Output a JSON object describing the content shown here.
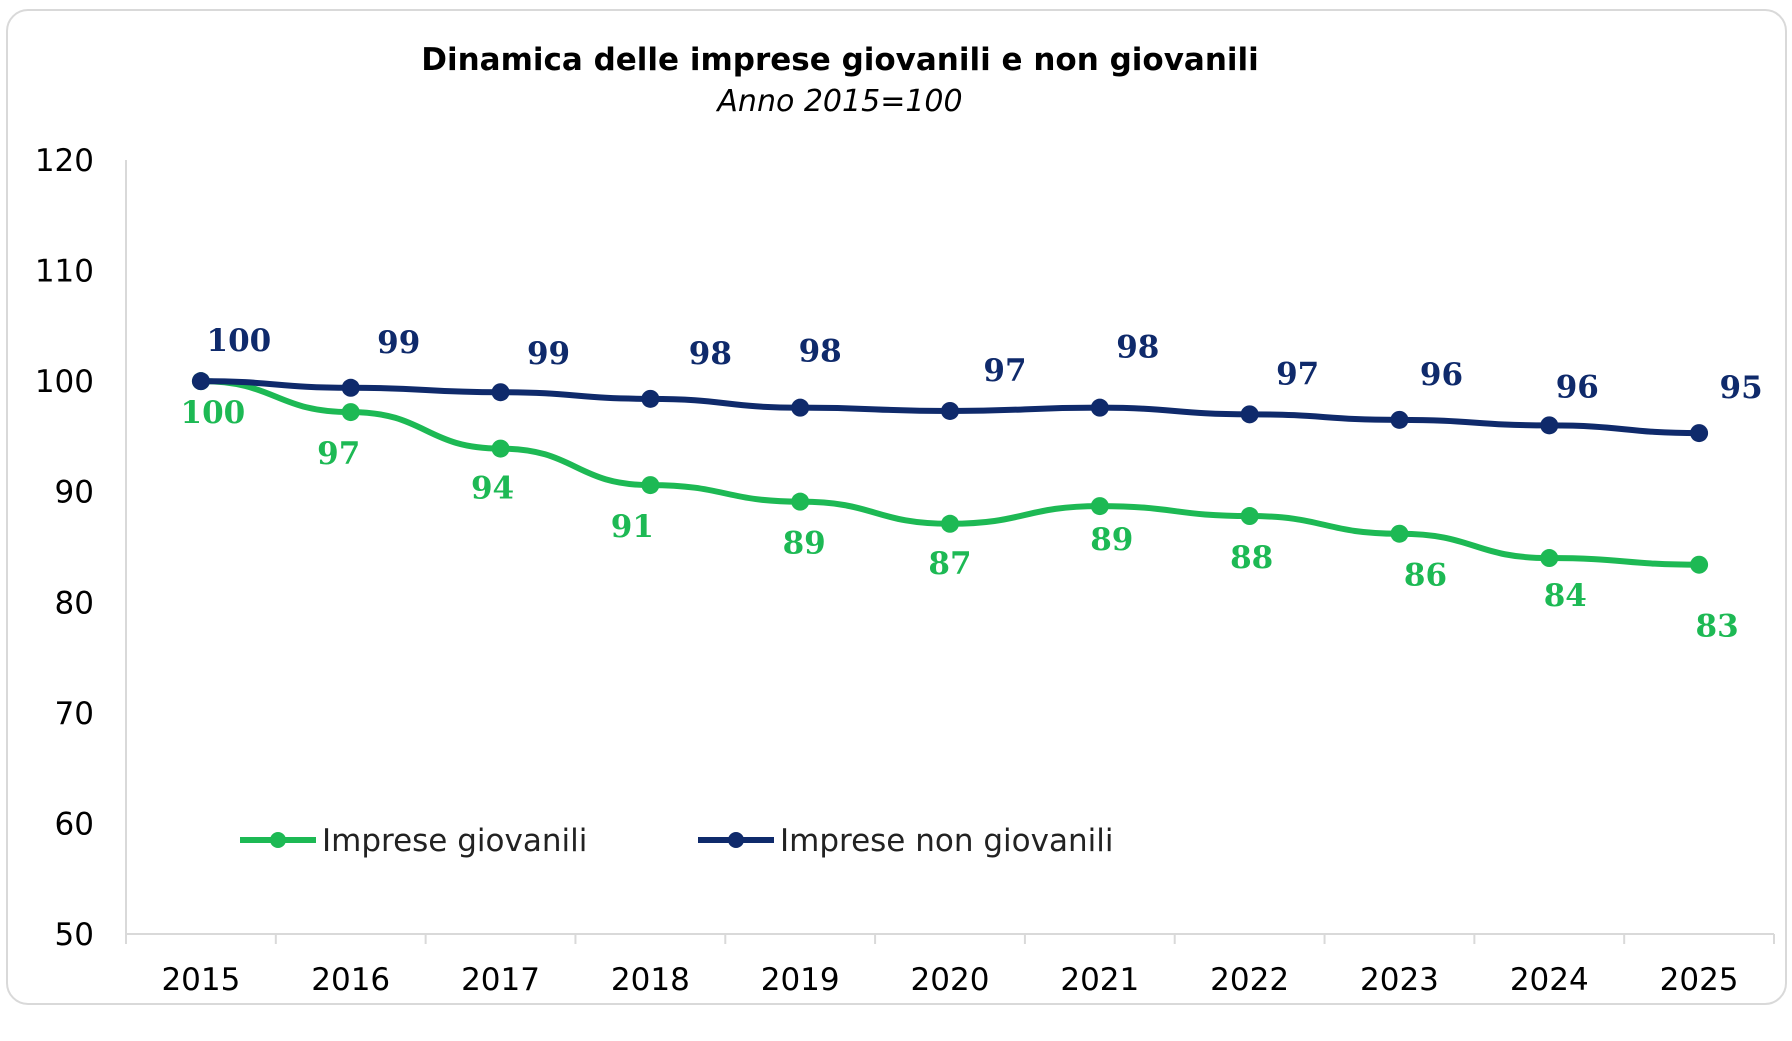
{
  "chart_data": {
    "type": "line",
    "title": "Dinamica delle imprese giovanili e non giovanili",
    "subtitle": "Anno 2015=100",
    "xlabel": "",
    "ylabel": "",
    "ylim": [
      50,
      120
    ],
    "yticks": [
      "50",
      "60",
      "70",
      "80",
      "90",
      "100",
      "110",
      "120"
    ],
    "categories": [
      "2015",
      "2016",
      "2017",
      "2018",
      "2019",
      "2020",
      "2021",
      "2022",
      "2023",
      "2024",
      "2025"
    ],
    "grid": false,
    "legend_position": "bottom-left (inside plot)",
    "series": [
      {
        "name": "Imprese giovanili",
        "color": "#1db954",
        "values": [
          100,
          97.2,
          93.9,
          90.6,
          89.1,
          87.1,
          88.7,
          87.8,
          86.2,
          84.0,
          83.4
        ],
        "labels": [
          "100",
          "97",
          "94",
          "91",
          "89",
          "87",
          "89",
          "88",
          "86",
          "84",
          "83"
        ]
      },
      {
        "name": "Imprese non giovanili",
        "color": "#0f2a6b",
        "values": [
          100,
          99.4,
          99.0,
          98.4,
          97.6,
          97.3,
          97.6,
          97.0,
          96.5,
          96.0,
          95.3
        ],
        "labels": [
          "100",
          "99",
          "99",
          "98",
          "98",
          "97",
          "98",
          "97",
          "96",
          "96",
          "95"
        ]
      }
    ]
  }
}
